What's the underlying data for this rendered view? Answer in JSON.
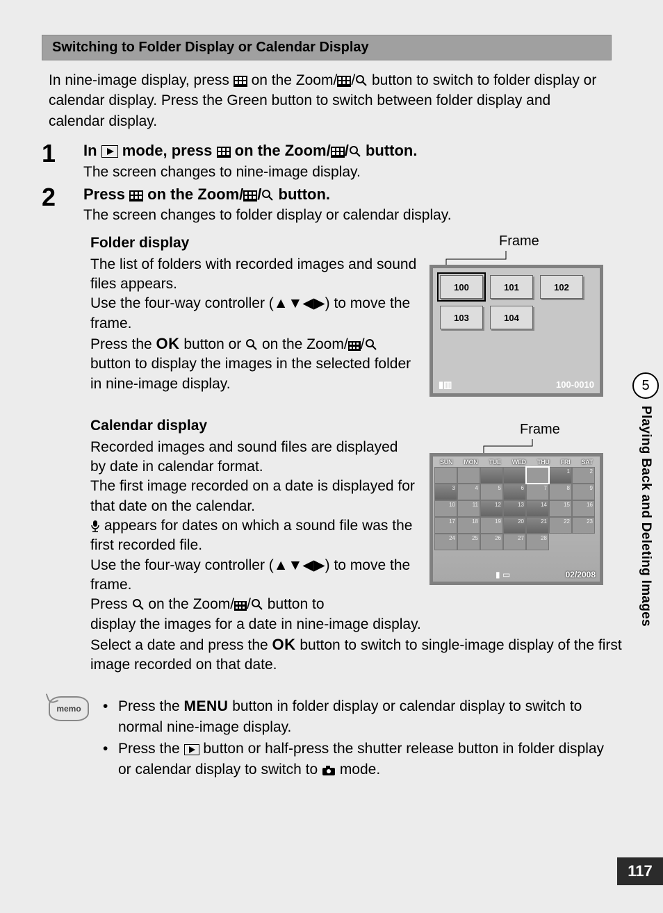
{
  "colors": {
    "page_bg": "#ececec",
    "header_bg": "#a0a0a0",
    "screen_border": "#808080",
    "screen_bg": "#c7c7c7",
    "pagenum_bg": "#2b2b2b"
  },
  "section_title": "Switching to Folder Display or Calendar Display",
  "intro": "In nine-image display, press ⧉ on the Zoom/⧉/🔍 button to switch to folder display or calendar display. Press the Green button to switch between folder display and calendar display.",
  "steps": [
    {
      "num": "1",
      "head_pre": "In ",
      "head_mid": " mode, press ",
      "head_post": " on the Zoom/⧉/🔍 button.",
      "desc": "The screen changes to nine-image display."
    },
    {
      "num": "2",
      "head_pre": "Press ",
      "head_post": " on the Zoom/⧉/🔍 button.",
      "desc": "The screen changes to folder display or calendar display."
    }
  ],
  "folder": {
    "title": "Folder display",
    "p1": "The list of folders with recorded images and sound files appears.",
    "p2": "Use the four-way controller (▲▼◀▶) to move the frame.",
    "p3a": "Press the ",
    "p3b": " button or 🔍 on the Zoom/⧉/🔍 button to display the images in the selected folder in nine-image display.",
    "frame_label": "Frame",
    "folders": [
      "100",
      "101",
      "102",
      "103",
      "104"
    ],
    "selected_index": 0,
    "status_right": "100-0010"
  },
  "calendar": {
    "title": "Calendar display",
    "p1": "Recorded images and sound files are displayed by date in calendar format.",
    "p2": "The first image recorded on a date is displayed for that date on the calendar.",
    "p3": "🎤 appears for dates on which a sound file was the first recorded file.",
    "p4": "Use the four-way controller (▲▼◀▶) to move the frame.",
    "p5": "Press 🔍 on the Zoom/⧉/🔍 button to",
    "cont1": "display the images for a date in nine-image display.",
    "cont2a": "Select a date and press the ",
    "cont2b": " button to switch to single-image display of the first image recorded on that date.",
    "frame_label": "Frame",
    "week_header": [
      "SUN",
      "MON",
      "TUE",
      "WED",
      "THU",
      "FRI",
      "SAT"
    ],
    "days": [
      "",
      "",
      "",
      "",
      "",
      "1",
      "2",
      "3",
      "4",
      "5",
      "6",
      "7",
      "8",
      "9",
      "10",
      "11",
      "12",
      "13",
      "14",
      "15",
      "16",
      "17",
      "18",
      "19",
      "20",
      "21",
      "22",
      "23",
      "24",
      "25",
      "26",
      "27",
      "28"
    ],
    "img_days": [
      2,
      3,
      5,
      7,
      10,
      16,
      17,
      18,
      24,
      25
    ],
    "selected_day_index": 4,
    "status": "02/2008"
  },
  "memo": {
    "label": "memo",
    "items": [
      {
        "pre": "Press the ",
        "menu": "MENU",
        "post": " button in folder display or calendar display to switch to normal nine-image display."
      },
      {
        "pre": "Press the ▶ button or half-press the shutter release button in folder display or calendar display to switch to 📷 mode."
      }
    ]
  },
  "side": {
    "chapter": "5",
    "title": "Playing Back and Deleting Images"
  },
  "page_number": "117"
}
